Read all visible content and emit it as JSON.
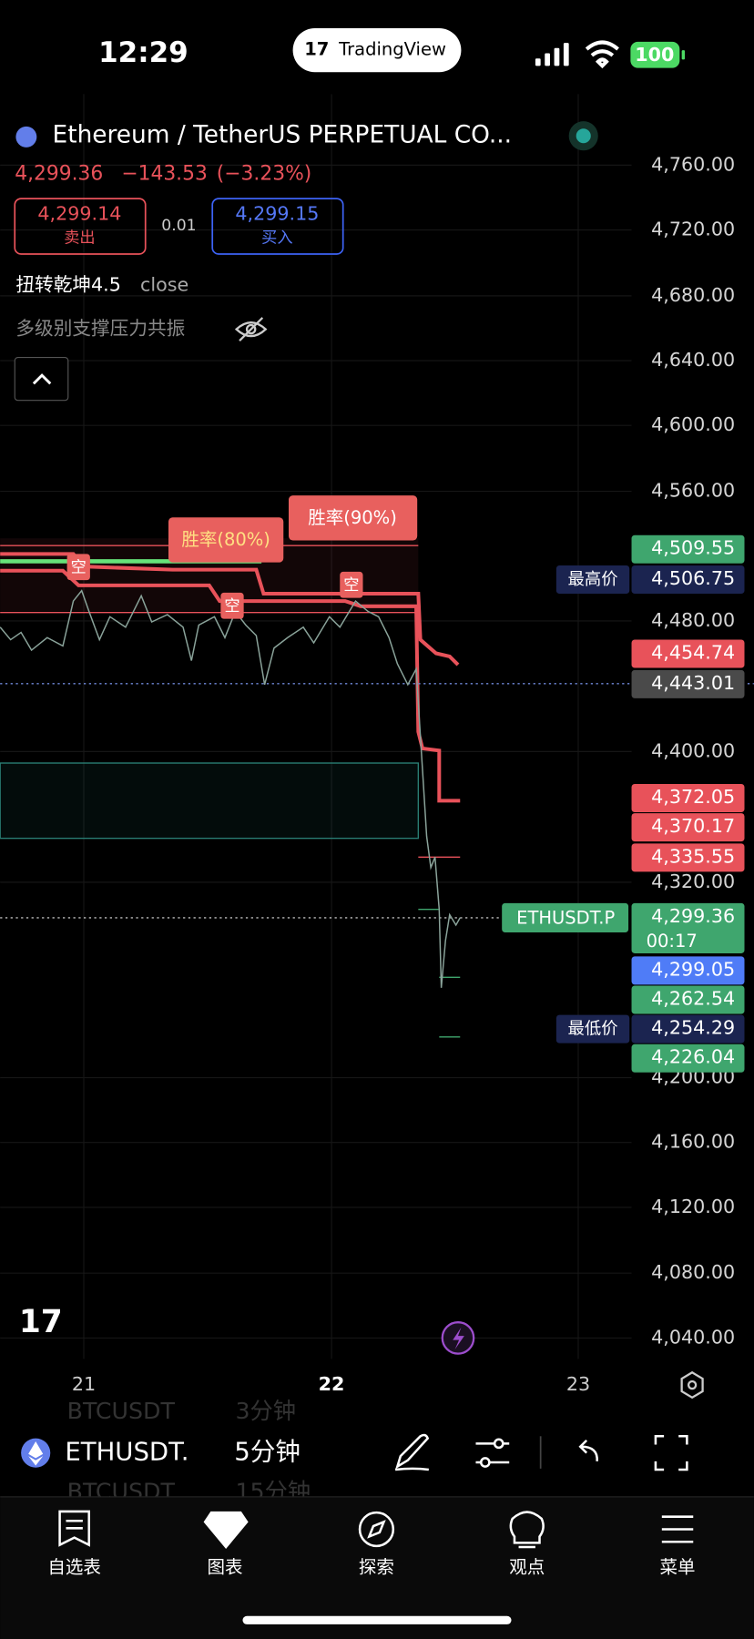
{
  "status_bar": {
    "time": "12:29",
    "app": "TradingView",
    "battery": "100"
  },
  "symbol": {
    "title": "Ethereum / TetherUS PERPETUAL CO...",
    "last": "4,299.36",
    "change": "−143.53",
    "change_pct": "(−3.23%)"
  },
  "trade": {
    "sell_price": "4,299.14",
    "sell_label": "卖出",
    "spread": "0.01",
    "buy_price": "4,299.15",
    "buy_label": "买入"
  },
  "indicators": [
    {
      "name": "扭转乾坤4.5",
      "source": "close"
    },
    {
      "name": "多级别支撑压力共振"
    }
  ],
  "chart_labels": {
    "win_rates": [
      "胜率(80%)",
      "胜率(90%)"
    ],
    "signals": [
      "空",
      "空",
      "空"
    ]
  },
  "price_axis": [
    "4,760.00",
    "4,720.00",
    "4,680.00",
    "4,640.00",
    "4,600.00",
    "4,560.00",
    "4,480.00",
    "4,400.00",
    "4,320.00",
    "4,200.00",
    "4,160.00",
    "4,120.00",
    "4,080.00",
    "4,040.00"
  ],
  "price_tags": [
    "4,509.55",
    "4,506.75",
    "4,454.74",
    "4,443.01",
    "4,372.05",
    "4,370.17",
    "4,335.55",
    "4,299.36",
    "4,299.05",
    "4,262.54",
    "4,254.29",
    "4,226.04"
  ],
  "countdown": "00:17",
  "side_labels": {
    "symbol": "ETHUSDT.P",
    "high": "最高价",
    "low": "最低价"
  },
  "time_axis": [
    "21",
    "22",
    "23"
  ],
  "toolbar": {
    "symbol": "ETHUSDT.",
    "interval": "5分钟",
    "ghost_above": [
      "BTCUSDT",
      "3分钟"
    ],
    "ghost_below": [
      "BTCUSDT",
      "15分钟"
    ]
  },
  "nav": [
    "自选表",
    "图表",
    "探索",
    "观点",
    "菜单"
  ]
}
